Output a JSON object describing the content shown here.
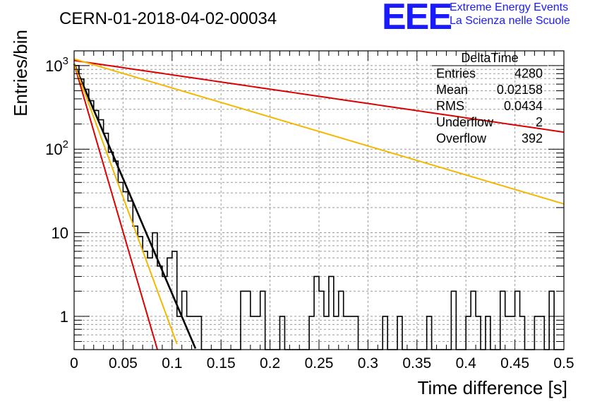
{
  "chart_data": {
    "type": "histogram",
    "title": "CERN-01-2018-04-02-00034",
    "xlabel": "Time difference [s]",
    "ylabel": "Entries/bin",
    "xlim": [
      0,
      0.5
    ],
    "ylim": [
      0.4,
      1500
    ],
    "yscale": "log",
    "grid": true,
    "x_tick_labels": [
      "0",
      "0.05",
      "0.1",
      "0.15",
      "0.2",
      "0.25",
      "0.3",
      "0.35",
      "0.4",
      "0.45",
      "0.5"
    ],
    "y_tick_labels": [
      "1",
      "10",
      "10^2",
      "10^3"
    ],
    "bin_width": 0.005,
    "bin_counts": [
      1000,
      690,
      520,
      380,
      290,
      225,
      155,
      92,
      72,
      40,
      31,
      24,
      12,
      9,
      6,
      5,
      10,
      4,
      3,
      5,
      6,
      1,
      2,
      1,
      1,
      1,
      0,
      0,
      0,
      0,
      0,
      0,
      0,
      0,
      2,
      2,
      1,
      1,
      2,
      0,
      0,
      0,
      1,
      0,
      0,
      0,
      0,
      0,
      1,
      3,
      2,
      1,
      3,
      1,
      2,
      1,
      1,
      1,
      0,
      0,
      0,
      0,
      0,
      1,
      0,
      0,
      1,
      0,
      0,
      0,
      0,
      0,
      1,
      0,
      0,
      0,
      0,
      2,
      0,
      0,
      1,
      2,
      1,
      0,
      1,
      0,
      0,
      2,
      1,
      1,
      2,
      1,
      0,
      0,
      1,
      1,
      0,
      2,
      0,
      0
    ],
    "fits": [
      {
        "color": "#000000",
        "A": 1050,
        "tau": 0.0158,
        "x_range": [
          0,
          0.14
        ]
      },
      {
        "color": "#dd0000",
        "A": 1050,
        "tau": 0.0108,
        "x_range": [
          0,
          0.085
        ]
      },
      {
        "color": "#f5b800",
        "A": 1050,
        "tau": 0.0136,
        "x_range": [
          0,
          0.105
        ]
      },
      {
        "color": "#dd0000",
        "A": 1150,
        "tau": 0.2533,
        "x_range": [
          0,
          0.5
        ]
      },
      {
        "color": "#f5b800",
        "A": 1200,
        "tau": 0.1252,
        "x_range": [
          0,
          0.5
        ]
      }
    ],
    "stats_box": {
      "name": "DeltaTime",
      "rows": [
        {
          "label": "Entries",
          "value": "4280"
        },
        {
          "label": "Mean",
          "value": "0.02158"
        },
        {
          "label": "RMS",
          "value": "0.0434"
        },
        {
          "label": "Underflow",
          "value": "2"
        },
        {
          "label": "Overflow",
          "value": "392"
        }
      ]
    }
  },
  "logo": {
    "mark": "EEE",
    "line1": "Extreme Energy Events",
    "line2": "La Scienza nelle Scuole",
    "color": "#1a1aff"
  }
}
